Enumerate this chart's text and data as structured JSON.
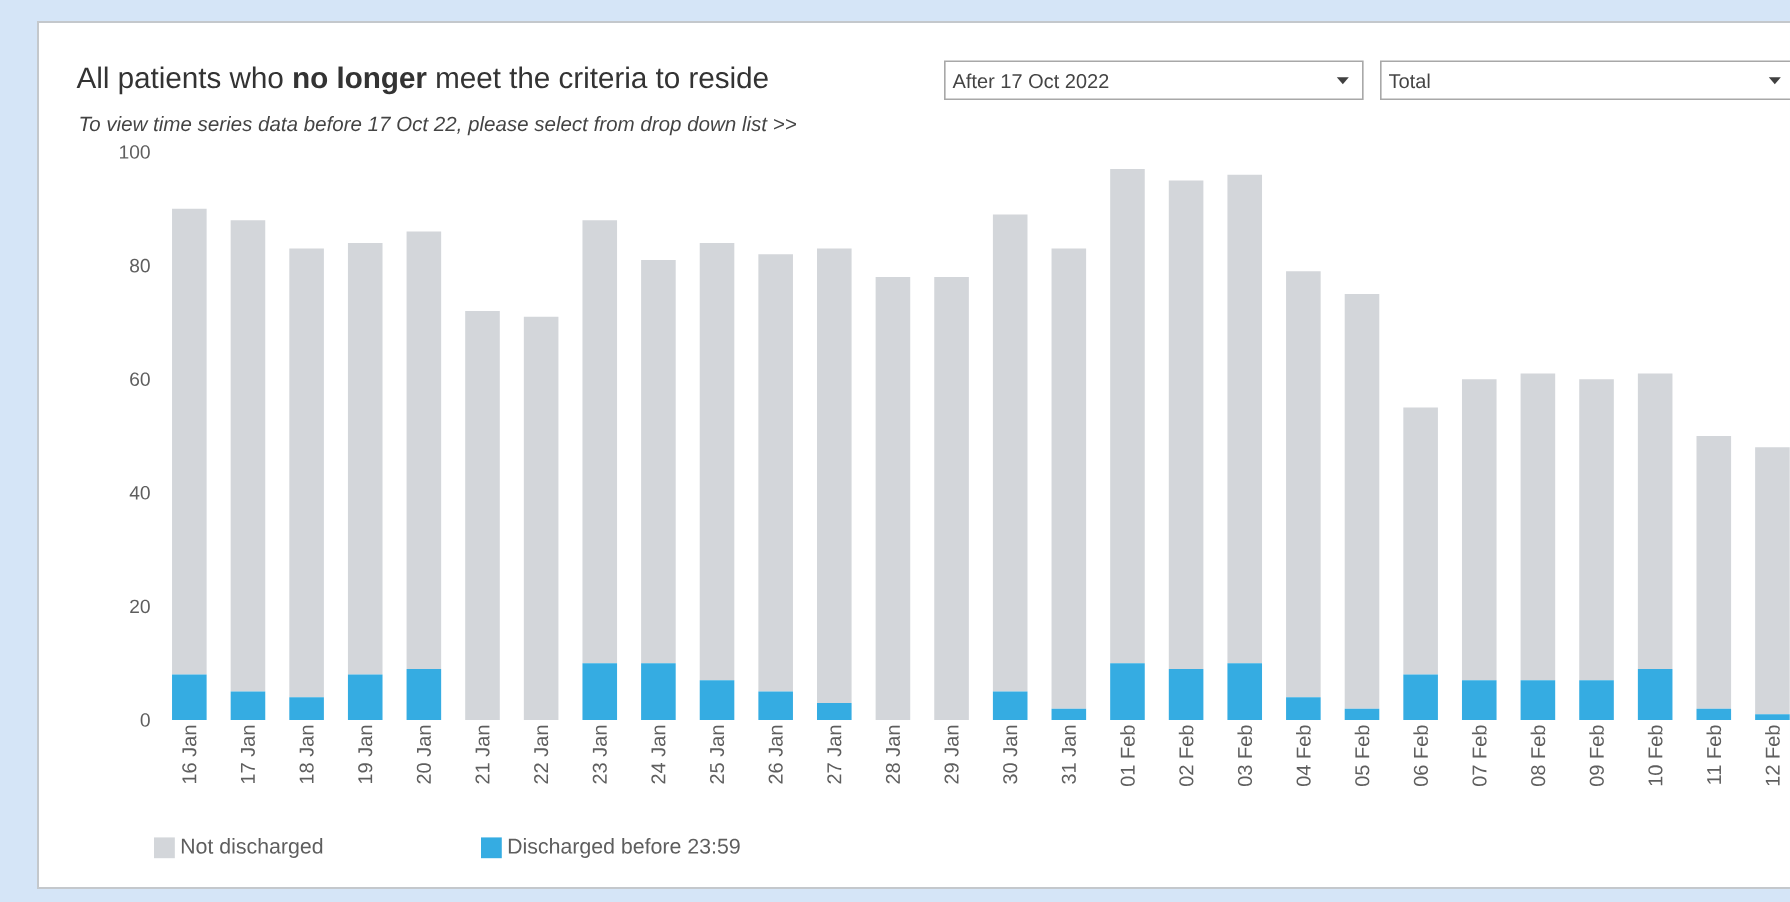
{
  "chart_data": {
    "type": "bar",
    "stacked": true,
    "title": "All patients who **no longer** meet the criteria to reside",
    "subtitle": "To view time series data before 17 Oct 22, please select from drop down list  >>",
    "annotations": [
      "After 17 Oct 2022",
      "Total"
    ],
    "categories": [
      "16 Jan",
      "17 Jan",
      "18 Jan",
      "19 Jan",
      "20 Jan",
      "21 Jan",
      "22 Jan",
      "23 Jan",
      "24 Jan",
      "25 Jan",
      "26 Jan",
      "27 Jan",
      "28 Jan",
      "29 Jan",
      "30 Jan",
      "31 Jan",
      "01 Feb",
      "02 Feb",
      "03 Feb",
      "04 Feb",
      "05 Feb",
      "06 Feb",
      "07 Feb",
      "08 Feb",
      "09 Feb",
      "10 Feb",
      "11 Feb",
      "12 Feb"
    ],
    "series": [
      {
        "name": "Discharged before 23:59",
        "color": "#35ace2",
        "values": [
          8,
          5,
          4,
          8,
          9,
          0,
          0,
          10,
          10,
          7,
          5,
          3,
          0,
          0,
          5,
          2,
          10,
          9,
          10,
          4,
          2,
          8,
          7,
          7,
          7,
          9,
          2,
          1
        ]
      },
      {
        "name": "Not discharged",
        "color": "#d3d6da",
        "values": [
          82,
          83,
          79,
          76,
          77,
          72,
          71,
          78,
          71,
          77,
          77,
          80,
          78,
          78,
          84,
          81,
          87,
          86,
          86,
          75,
          73,
          47,
          53,
          54,
          53,
          52,
          48,
          47
        ]
      }
    ],
    "ylim": [
      0,
      100
    ],
    "yticks": [
      0,
      20,
      40,
      60,
      80,
      100
    ],
    "legend": "bottom left"
  }
}
